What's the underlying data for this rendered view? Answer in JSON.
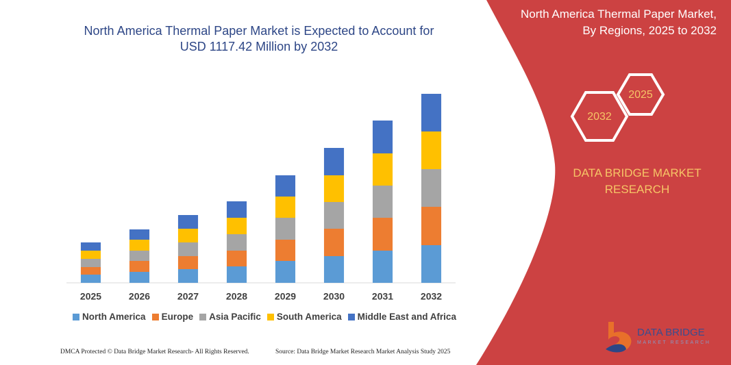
{
  "chart_data": {
    "type": "bar",
    "stacked": true,
    "title": "North America Thermal Paper Market is Expected to Account for USD 1117.42 Million by 2032",
    "categories": [
      "2025",
      "2026",
      "2027",
      "2028",
      "2029",
      "2030",
      "2031",
      "2032"
    ],
    "series": [
      {
        "name": "North America",
        "color": "#5b9bd5",
        "values": [
          12,
          16,
          20,
          24,
          32,
          39,
          47,
          55
        ]
      },
      {
        "name": "Europe",
        "color": "#ed7d31",
        "values": [
          11,
          16,
          19,
          23,
          31,
          40,
          48,
          56
        ]
      },
      {
        "name": "Asia Pacific",
        "color": "#a5a5a5",
        "values": [
          12,
          15,
          20,
          24,
          32,
          39,
          47,
          55
        ]
      },
      {
        "name": "South America",
        "color": "#ffc000",
        "values": [
          12,
          16,
          20,
          24,
          31,
          39,
          47,
          55
        ]
      },
      {
        "name": "Middle East and Africa",
        "color": "#4472c4",
        "values": [
          12,
          15,
          20,
          24,
          31,
          40,
          48,
          55
        ]
      }
    ],
    "ylim": [
      0,
      290
    ]
  },
  "panel": {
    "title": "North America Thermal Paper Market, By Regions, 2025 to 2032",
    "hexagons": [
      "2025",
      "2032"
    ],
    "brand": "DATA BRIDGE MARKET RESEARCH"
  },
  "logo": {
    "name": "DATA BRIDGE",
    "tagline": "MARKET RESEARCH"
  },
  "footer": {
    "copyright": "DMCA Protected © Data Bridge Market Research- All Rights Reserved.",
    "source": "Source: Data Bridge Market Research  Market Analysis Study 2025"
  }
}
